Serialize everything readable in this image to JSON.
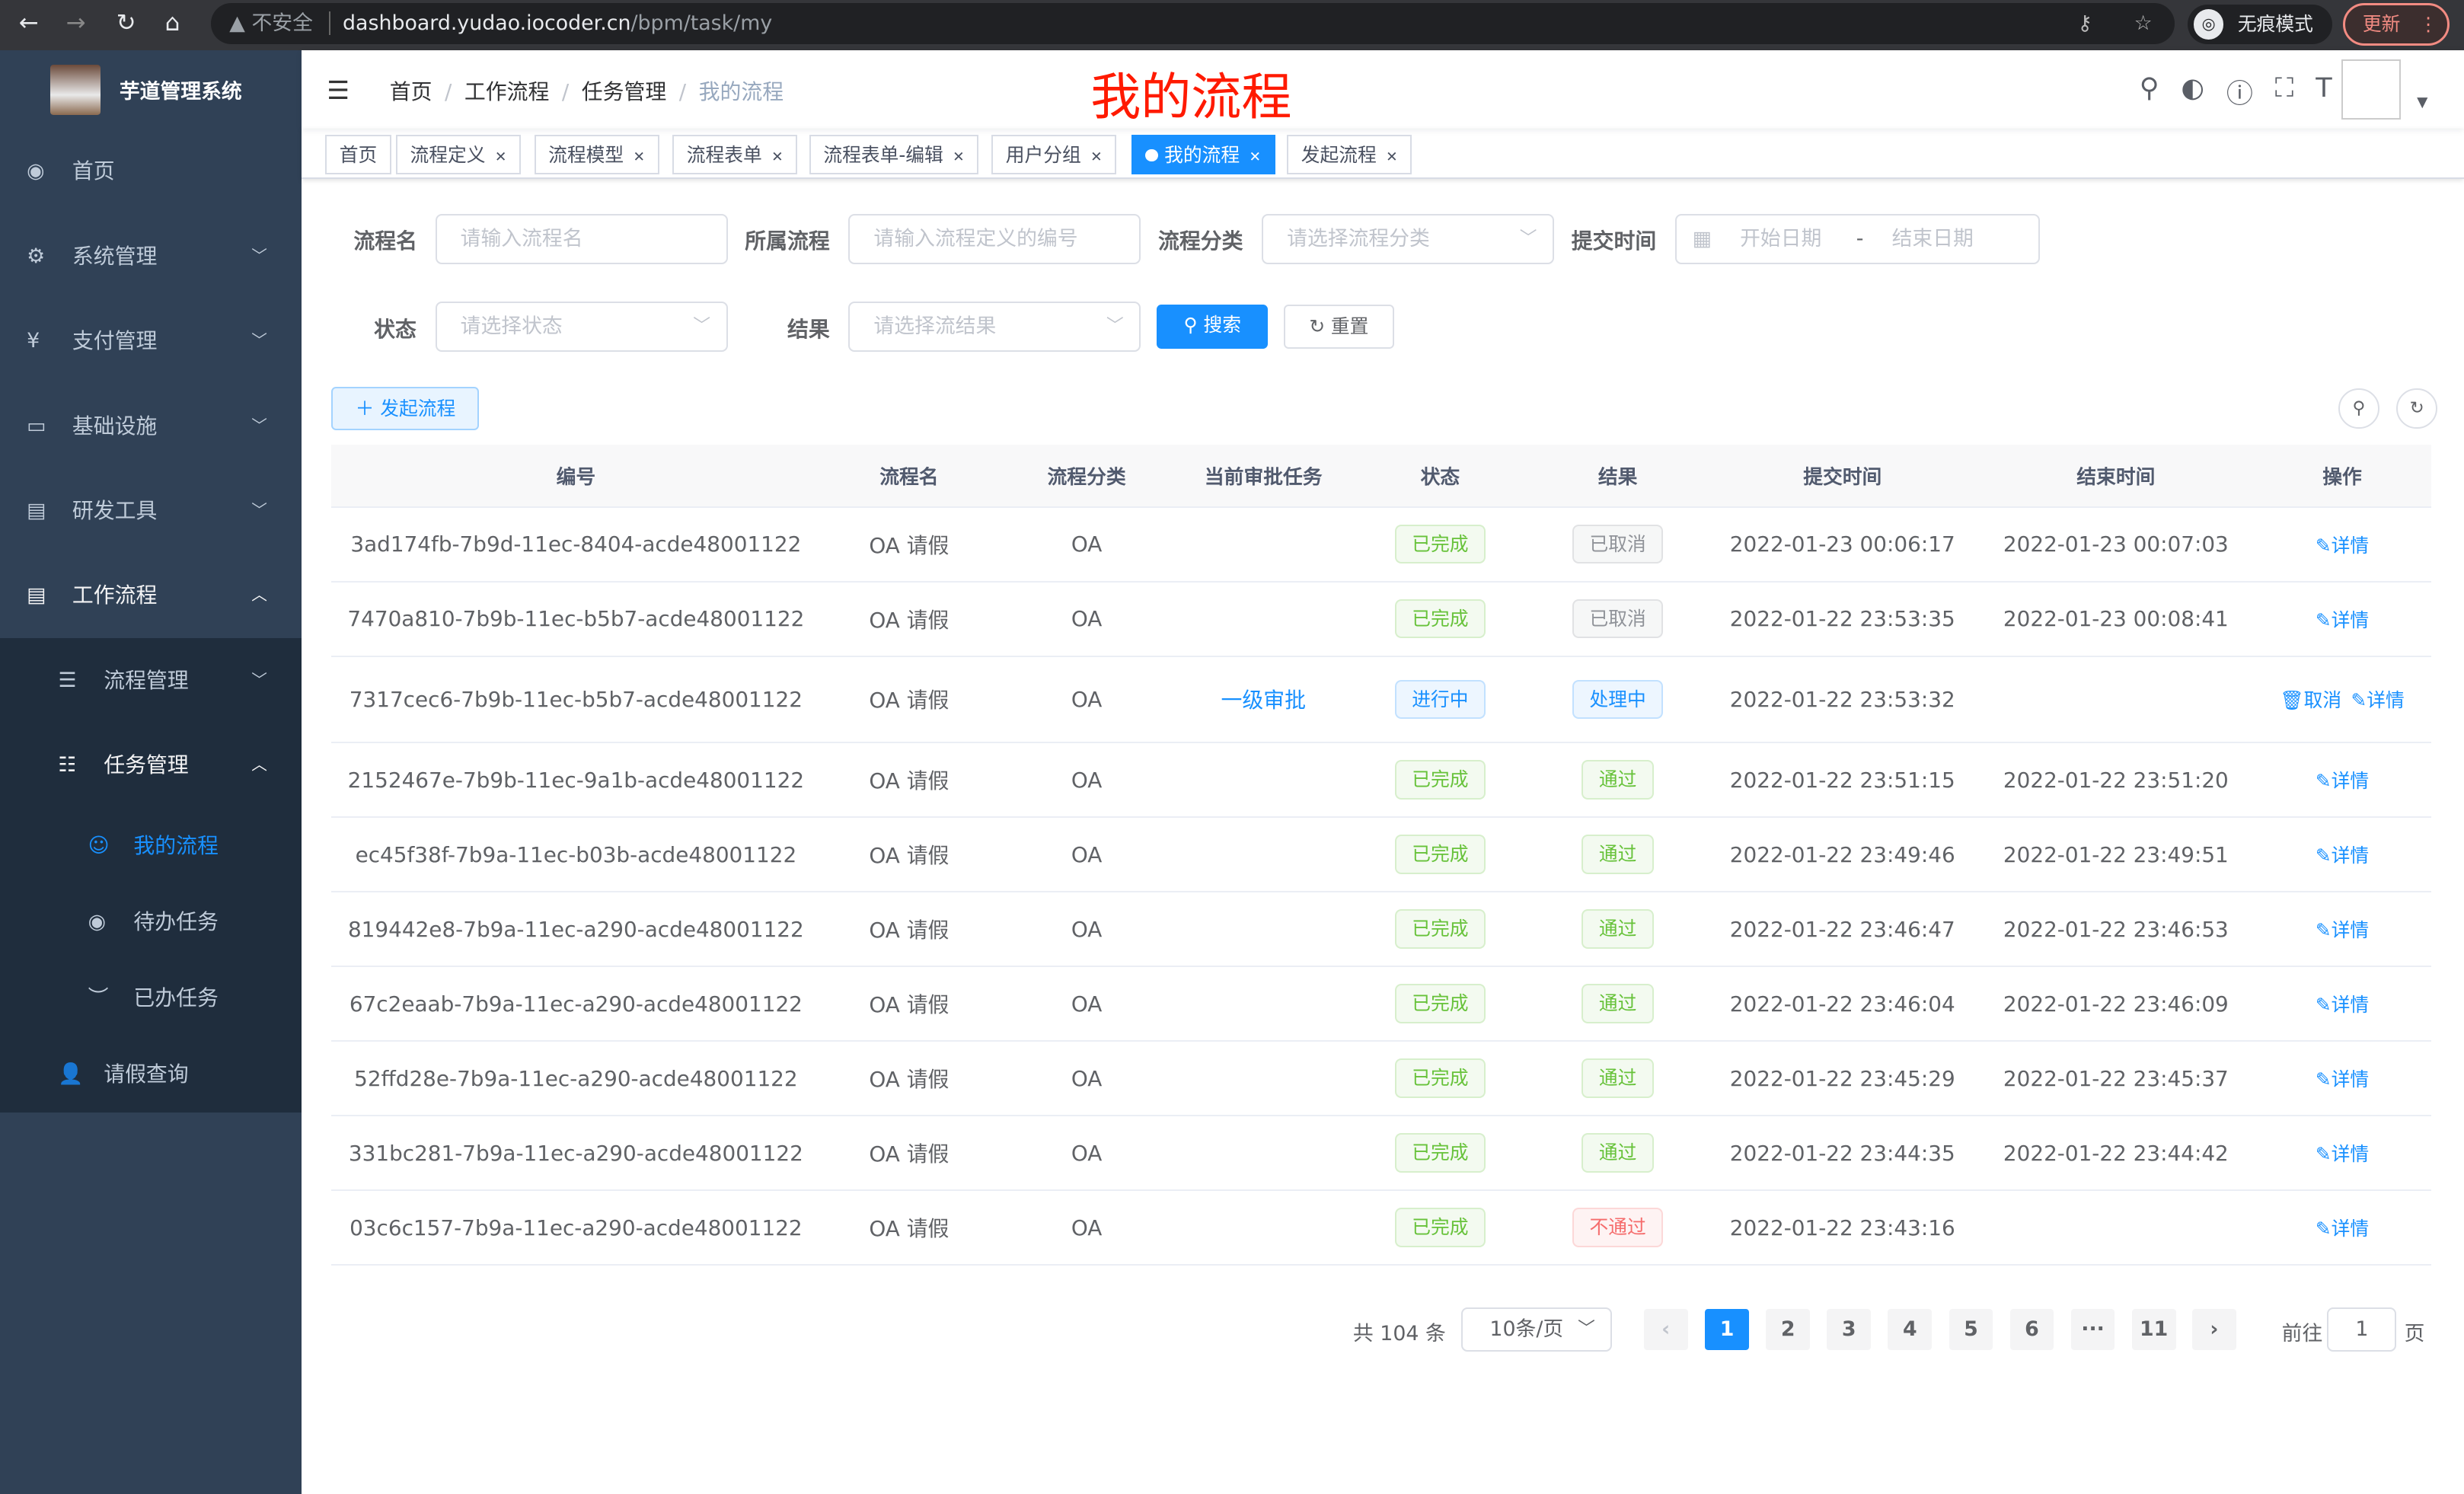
{
  "browser": {
    "security": "不安全",
    "host": "dashboard.yudao.iocoder.cn",
    "path": "/bpm/task/my",
    "incognito": "无痕模式",
    "update": "更新"
  },
  "sidebar": {
    "title": "芋道管理系统",
    "items": [
      {
        "label": "首页",
        "icon": "dashboard-icon"
      },
      {
        "label": "系统管理",
        "icon": "gear-icon"
      },
      {
        "label": "支付管理",
        "icon": "yen-icon"
      },
      {
        "label": "基础设施",
        "icon": "monitor-icon"
      },
      {
        "label": "研发工具",
        "icon": "toolbox-icon"
      },
      {
        "label": "工作流程",
        "icon": "workflow-icon"
      }
    ],
    "sub": [
      {
        "label": "流程管理"
      },
      {
        "label": "任务管理"
      }
    ],
    "sub3": [
      {
        "label": "我的流程"
      },
      {
        "label": "待办任务"
      },
      {
        "label": "已办任务"
      }
    ],
    "extra": {
      "label": "请假查询"
    }
  },
  "header": {
    "breadcrumb": [
      "首页",
      "工作流程",
      "任务管理",
      "我的流程"
    ],
    "page_title": "我的流程"
  },
  "tags": [
    "首页",
    "流程定义",
    "流程模型",
    "流程表单",
    "流程表单-编辑",
    "用户分组",
    "我的流程",
    "发起流程"
  ],
  "filters": {
    "name_label": "流程名",
    "name_ph": "请输入流程名",
    "def_label": "所属流程",
    "def_ph": "请输入流程定义的编号",
    "cat_label": "流程分类",
    "cat_ph": "请选择流程分类",
    "time_label": "提交时间",
    "start_ph": "开始日期",
    "end_ph": "结束日期",
    "dash": "-",
    "status_label": "状态",
    "status_ph": "请选择状态",
    "result_label": "结果",
    "result_ph": "请选择流结果",
    "search": "搜索",
    "reset": "重置"
  },
  "toolbar": {
    "create": "发起流程"
  },
  "table": {
    "headers": [
      "编号",
      "流程名",
      "流程分类",
      "当前审批任务",
      "状态",
      "结果",
      "提交时间",
      "结束时间",
      "操作"
    ],
    "rows": [
      {
        "id": "3ad174fb-7b9d-11ec-8404-acde48001122",
        "name": "OA 请假",
        "cat": "OA",
        "task": "",
        "status": "已完成",
        "result": "已取消",
        "start": "2022-01-23 00:06:17",
        "end": "2022-01-23 00:07:03",
        "actions": [
          "详情"
        ]
      },
      {
        "id": "7470a810-7b9b-11ec-b5b7-acde48001122",
        "name": "OA 请假",
        "cat": "OA",
        "task": "",
        "status": "已完成",
        "result": "已取消",
        "start": "2022-01-22 23:53:35",
        "end": "2022-01-23 00:08:41",
        "actions": [
          "详情"
        ]
      },
      {
        "id": "7317cec6-7b9b-11ec-b5b7-acde48001122",
        "name": "OA 请假",
        "cat": "OA",
        "task": "一级审批",
        "status": "进行中",
        "result": "处理中",
        "start": "2022-01-22 23:53:32",
        "end": "",
        "actions": [
          "取消",
          "详情"
        ]
      },
      {
        "id": "2152467e-7b9b-11ec-9a1b-acde48001122",
        "name": "OA 请假",
        "cat": "OA",
        "task": "",
        "status": "已完成",
        "result": "通过",
        "start": "2022-01-22 23:51:15",
        "end": "2022-01-22 23:51:20",
        "actions": [
          "详情"
        ]
      },
      {
        "id": "ec45f38f-7b9a-11ec-b03b-acde48001122",
        "name": "OA 请假",
        "cat": "OA",
        "task": "",
        "status": "已完成",
        "result": "通过",
        "start": "2022-01-22 23:49:46",
        "end": "2022-01-22 23:49:51",
        "actions": [
          "详情"
        ]
      },
      {
        "id": "819442e8-7b9a-11ec-a290-acde48001122",
        "name": "OA 请假",
        "cat": "OA",
        "task": "",
        "status": "已完成",
        "result": "通过",
        "start": "2022-01-22 23:46:47",
        "end": "2022-01-22 23:46:53",
        "actions": [
          "详情"
        ]
      },
      {
        "id": "67c2eaab-7b9a-11ec-a290-acde48001122",
        "name": "OA 请假",
        "cat": "OA",
        "task": "",
        "status": "已完成",
        "result": "通过",
        "start": "2022-01-22 23:46:04",
        "end": "2022-01-22 23:46:09",
        "actions": [
          "详情"
        ]
      },
      {
        "id": "52ffd28e-7b9a-11ec-a290-acde48001122",
        "name": "OA 请假",
        "cat": "OA",
        "task": "",
        "status": "已完成",
        "result": "通过",
        "start": "2022-01-22 23:45:29",
        "end": "2022-01-22 23:45:37",
        "actions": [
          "详情"
        ]
      },
      {
        "id": "331bc281-7b9a-11ec-a290-acde48001122",
        "name": "OA 请假",
        "cat": "OA",
        "task": "",
        "status": "已完成",
        "result": "通过",
        "start": "2022-01-22 23:44:35",
        "end": "2022-01-22 23:44:42",
        "actions": [
          "详情"
        ]
      },
      {
        "id": "03c6c157-7b9a-11ec-a290-acde48001122",
        "name": "OA 请假",
        "cat": "OA",
        "task": "",
        "status": "已完成",
        "result": "不通过",
        "start": "2022-01-22 23:43:16",
        "end": "",
        "actions": [
          "详情"
        ]
      }
    ]
  },
  "tag_colors": {
    "已完成": "#67c23a",
    "通过": "#67c23a",
    "已取消": "#909399",
    "进行中": "#1890ff",
    "处理中": "#1890ff",
    "不通过": "#f56c6c"
  },
  "pagination": {
    "total": "共 104 条",
    "page_size": "10条/页",
    "pages": [
      "1",
      "2",
      "3",
      "4",
      "5",
      "6",
      "···",
      "11"
    ],
    "current": "1",
    "goto": "前往",
    "goto_value": "1",
    "page_suffix": "页"
  }
}
